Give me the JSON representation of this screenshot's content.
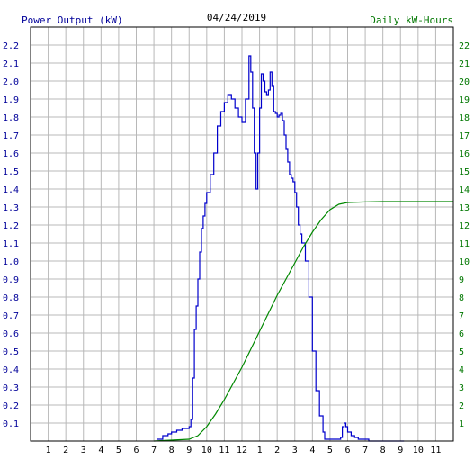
{
  "chart_data": {
    "type": "line",
    "title": "04/24/2019",
    "y_left_label": "Power Output (kW)",
    "y_right_label": "Daily kW-Hours",
    "x_ticks": [
      "1",
      "2",
      "3",
      "4",
      "5",
      "6",
      "7",
      "8",
      "9",
      "10",
      "11",
      "12",
      "1",
      "2",
      "3",
      "4",
      "5",
      "6",
      "7",
      "8",
      "9",
      "10",
      "11"
    ],
    "y_left_ticks": [
      "0.1",
      "0.2",
      "0.3",
      "0.4",
      "0.5",
      "0.6",
      "0.7",
      "0.8",
      "0.9",
      "1.0",
      "1.1",
      "1.2",
      "1.3",
      "1.4",
      "1.5",
      "1.6",
      "1.7",
      "1.8",
      "1.9",
      "2.0",
      "2.1",
      "2.2"
    ],
    "y_right_ticks": [
      "1",
      "2",
      "3",
      "4",
      "5",
      "6",
      "7",
      "8",
      "9",
      "10",
      "11",
      "12",
      "13",
      "14",
      "15",
      "16",
      "17",
      "18",
      "19",
      "20",
      "21",
      "22"
    ],
    "x_range": [
      0,
      24
    ],
    "y_left_range": [
      0,
      2.3
    ],
    "y_right_range": [
      0,
      23
    ],
    "grid": true,
    "colors": {
      "power": "#0000cc",
      "energy": "#008800",
      "left_axis_text": "#000099",
      "right_axis_text": "#007700",
      "grid": "#b8b8b8"
    },
    "series": [
      {
        "name": "Power Output (kW)",
        "axis": "left",
        "x": [
          7.2,
          7.5,
          7.8,
          8.0,
          8.3,
          8.6,
          8.8,
          8.9,
          9.0,
          9.1,
          9.2,
          9.3,
          9.4,
          9.5,
          9.6,
          9.7,
          9.8,
          9.9,
          10.0,
          10.2,
          10.4,
          10.6,
          10.8,
          11.0,
          11.2,
          11.4,
          11.6,
          11.8,
          12.0,
          12.2,
          12.4,
          12.5,
          12.6,
          12.7,
          12.8,
          12.9,
          13.0,
          13.1,
          13.2,
          13.3,
          13.4,
          13.5,
          13.6,
          13.7,
          13.8,
          13.9,
          14.0,
          14.1,
          14.2,
          14.3,
          14.4,
          14.5,
          14.6,
          14.7,
          14.8,
          14.9,
          15.0,
          15.1,
          15.2,
          15.3,
          15.4,
          15.6,
          15.8,
          16.0,
          16.2,
          16.4,
          16.6,
          16.7,
          16.8,
          16.9,
          17.0,
          17.1,
          17.2,
          17.3,
          17.4,
          17.5,
          17.6,
          17.7,
          17.8,
          17.9,
          18.0,
          18.2,
          18.4,
          18.6,
          18.8,
          19.0,
          19.2,
          19.4,
          19.6,
          19.8,
          20.0,
          20.2,
          20.4,
          20.6,
          20.8,
          21.0,
          21.2
        ],
        "y": [
          0.01,
          0.03,
          0.04,
          0.05,
          0.06,
          0.07,
          0.07,
          0.07,
          0.08,
          0.12,
          0.35,
          0.62,
          0.75,
          0.9,
          1.05,
          1.18,
          1.25,
          1.32,
          1.38,
          1.48,
          1.6,
          1.75,
          1.83,
          1.88,
          1.92,
          1.9,
          1.85,
          1.8,
          1.77,
          1.9,
          2.14,
          2.05,
          1.85,
          1.6,
          1.4,
          1.6,
          1.85,
          2.04,
          2.0,
          1.94,
          1.92,
          1.95,
          2.05,
          1.97,
          1.83,
          1.82,
          1.8,
          1.81,
          1.82,
          1.78,
          1.7,
          1.62,
          1.55,
          1.48,
          1.46,
          1.44,
          1.38,
          1.3,
          1.2,
          1.15,
          1.1,
          1.0,
          0.8,
          0.5,
          0.28,
          0.14,
          0.05,
          0.01,
          0.01,
          0.01,
          0.01,
          0.01,
          0.01,
          0.01,
          0.01,
          0.01,
          0.02,
          0.08,
          0.1,
          0.08,
          0.05,
          0.03,
          0.02,
          0.01,
          0.01,
          0.01,
          0.0,
          0.0,
          0.0,
          0.0,
          0.0,
          0.0,
          0.0,
          0.0,
          0.0,
          0.0,
          0.0
        ]
      },
      {
        "name": "Daily kW-Hours",
        "axis": "right",
        "x": [
          7.0,
          8.0,
          9.0,
          9.5,
          10.0,
          10.5,
          11.0,
          11.5,
          12.0,
          12.5,
          13.0,
          13.5,
          14.0,
          14.5,
          15.0,
          15.5,
          16.0,
          16.5,
          17.0,
          17.5,
          18.0,
          19.0,
          20.0,
          21.0,
          22.0,
          23.0,
          24.0
        ],
        "y": [
          0.0,
          0.05,
          0.1,
          0.3,
          0.8,
          1.5,
          2.3,
          3.2,
          4.1,
          5.1,
          6.1,
          7.1,
          8.1,
          9.0,
          9.9,
          10.8,
          11.6,
          12.3,
          12.85,
          13.15,
          13.25,
          13.28,
          13.3,
          13.3,
          13.3,
          13.3,
          13.3
        ]
      }
    ]
  }
}
